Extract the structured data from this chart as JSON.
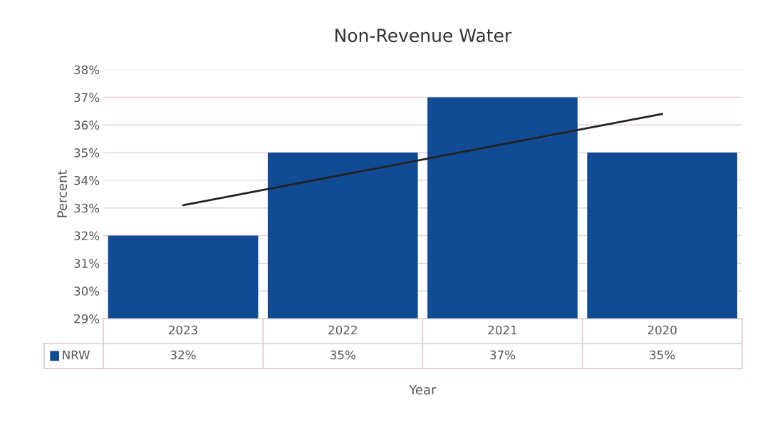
{
  "chart_data": {
    "type": "bar",
    "title": "Non-Revenue Water",
    "xlabel": "Year",
    "ylabel": "Percent",
    "categories": [
      "2023",
      "2022",
      "2021",
      "2020"
    ],
    "series": [
      {
        "name": "NRW",
        "color": "#114b94",
        "values": [
          32,
          35,
          37,
          35
        ],
        "value_labels": [
          "32%",
          "35%",
          "37%",
          "35%"
        ]
      },
      {
        "type": "line",
        "color": "#222222",
        "values": [
          33.1,
          34.2,
          35.3,
          36.4
        ]
      }
    ],
    "ylim": [
      29,
      38
    ],
    "yticks": [
      {
        "value": 29,
        "label": "29%"
      },
      {
        "value": 30,
        "label": "30%"
      },
      {
        "value": 31,
        "label": "31%"
      },
      {
        "value": 32,
        "label": "32%"
      },
      {
        "value": 33,
        "label": "33%"
      },
      {
        "value": 34,
        "label": "34%"
      },
      {
        "value": 35,
        "label": "35%"
      },
      {
        "value": 36,
        "label": "36%"
      },
      {
        "value": 37,
        "label": "37%"
      },
      {
        "value": 38,
        "label": "38%"
      }
    ],
    "grid": "y"
  }
}
